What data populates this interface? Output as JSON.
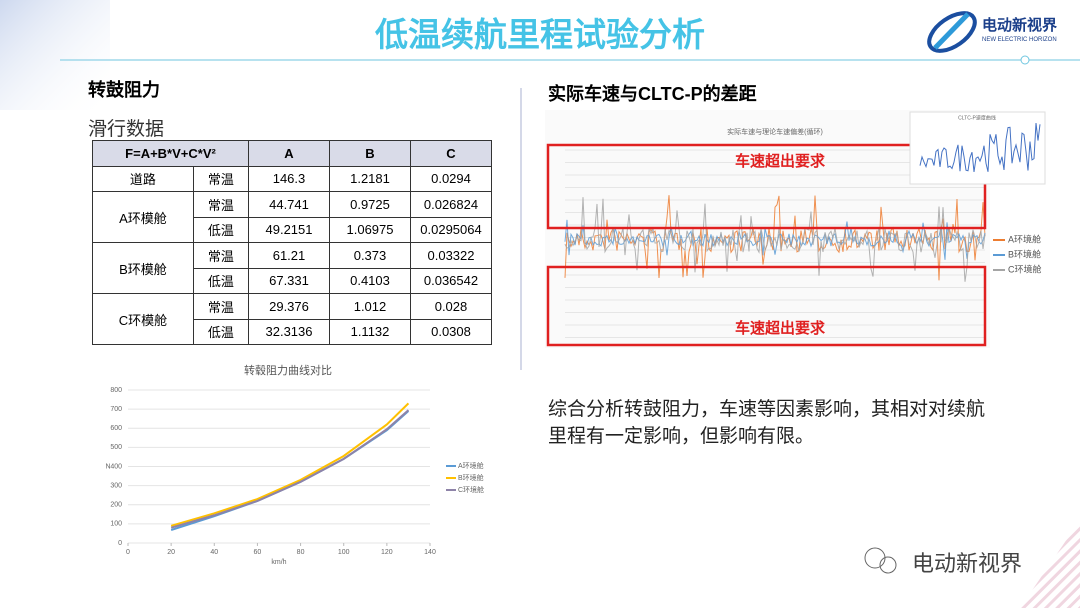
{
  "header": {
    "title": "低温续航里程试验分析",
    "logo_name": "电动新视界",
    "logo_subtitle": "NEW ELECTRIC HORIZON"
  },
  "left": {
    "heading": "转鼓阻力",
    "subheading": "滑行数据",
    "table": {
      "header": [
        "F=A+B*V+C*V²",
        "A",
        "B",
        "C"
      ],
      "groups": [
        {
          "name": "道路",
          "rows": [
            [
              "常温",
              146.3,
              1.2181,
              0.0294
            ]
          ]
        },
        {
          "name": "A环模舱",
          "rows": [
            [
              "常温",
              44.741,
              0.9725,
              0.026824
            ],
            [
              "低温",
              49.2151,
              1.06975,
              0.0295064
            ]
          ]
        },
        {
          "name": "B环模舱",
          "rows": [
            [
              "常温",
              61.21,
              0.373,
              0.03322
            ],
            [
              "低温",
              67.331,
              0.4103,
              0.036542
            ]
          ]
        },
        {
          "name": "C环模舱",
          "rows": [
            [
              "常温",
              29.376,
              1.012,
              0.028
            ],
            [
              "低温",
              32.3136,
              1.1132,
              0.0308
            ]
          ]
        }
      ]
    }
  },
  "curve_chart": {
    "type": "line",
    "title": "转毂阻力曲线对比",
    "x": [
      20,
      40,
      60,
      80,
      100,
      120,
      130
    ],
    "series": [
      {
        "name": "A环境舱",
        "color": "#5b9bd5",
        "values": [
          68,
          140,
          220,
          320,
          440,
          590,
          690
        ]
      },
      {
        "name": "B环境舱",
        "color": "#ffc000",
        "values": [
          90,
          155,
          230,
          330,
          455,
          620,
          730
        ]
      },
      {
        "name": "C环境舱",
        "color": "#8e83a8",
        "values": [
          80,
          145,
          220,
          320,
          440,
          595,
          695
        ]
      }
    ],
    "xlim": [
      0,
      140
    ],
    "xticks": [
      0,
      20,
      40,
      60,
      80,
      100,
      120,
      140
    ],
    "ylim": [
      0,
      800
    ],
    "yticks": [
      0,
      100,
      200,
      300,
      400,
      500,
      600,
      700,
      800
    ],
    "xlabel": "km/h",
    "ylabel": "N"
  },
  "right": {
    "heading": "实际车速与CLTC-P的差距",
    "speed_chart": {
      "title": "实际车速与理论车速偏差(循环)",
      "inset_title": "CLTC-P速度曲线",
      "callout_top": "车速超出要求",
      "callout_bottom": "车速超出要求",
      "legend": [
        {
          "name": "A环境舱",
          "color": "#ed7d31"
        },
        {
          "name": "B环境舱",
          "color": "#5b9bd5"
        },
        {
          "name": "C环境舱",
          "color": "#a5a5a5"
        }
      ]
    },
    "summary": "综合分析转鼓阻力，车速等因素影响，其相对对续航里程有一定影响，但影响有限。"
  },
  "watermark": "电动新视界"
}
